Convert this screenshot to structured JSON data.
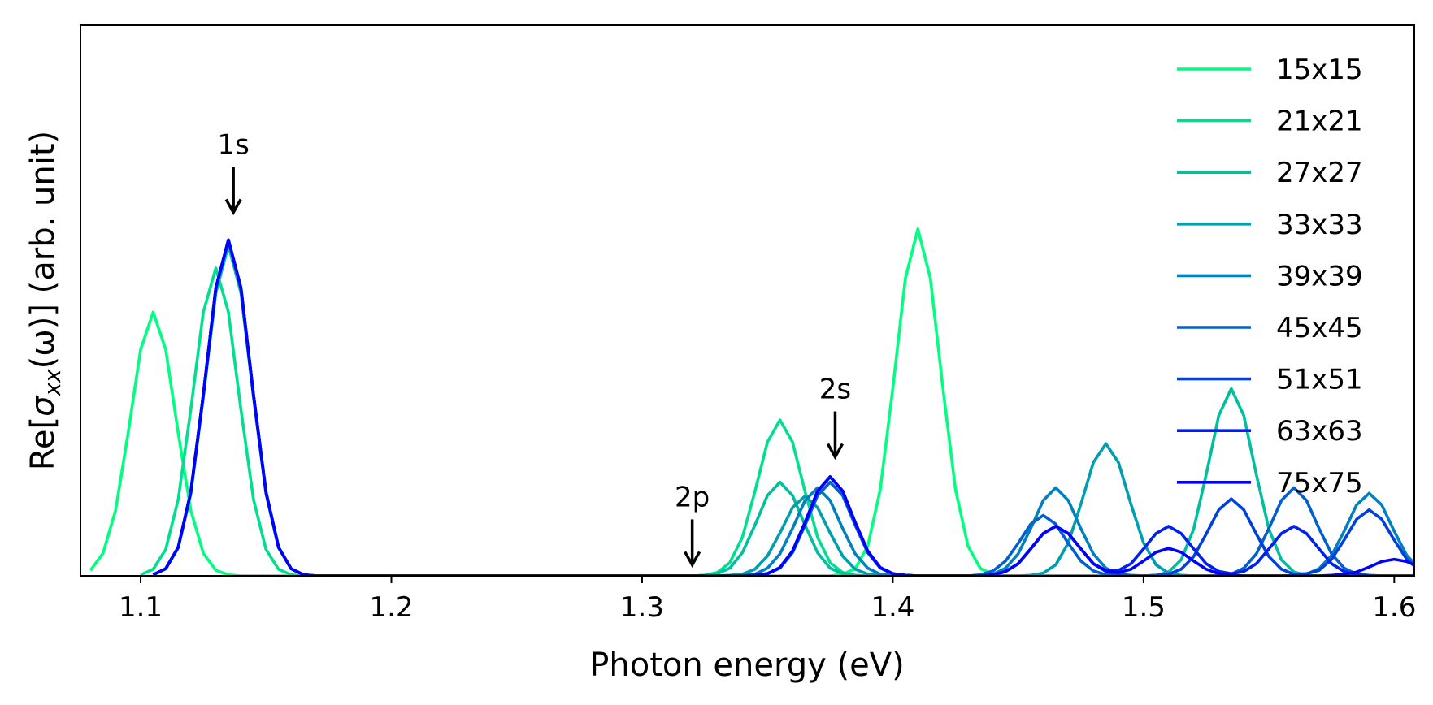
{
  "chart_data": {
    "type": "line",
    "xlabel": "Photon energy (eV)",
    "ylabel": [
      "Re[",
      "σ",
      "xx",
      "(ω)] (arb. unit)"
    ],
    "xlim": [
      1.076,
      1.608
    ],
    "ylim": [
      0,
      1
    ],
    "xticks": [
      1.1,
      1.2,
      1.3,
      1.4,
      1.5,
      1.6
    ],
    "legend": "upper right",
    "annotations": [
      {
        "text": "1s",
        "x": 1.137,
        "y": 0.66
      },
      {
        "text": "2p",
        "x": 1.32,
        "y": 0.02
      },
      {
        "text": "2s",
        "x": 1.377,
        "y": 0.216
      }
    ],
    "x": [
      1.08,
      1.085,
      1.09,
      1.095,
      1.1,
      1.105,
      1.11,
      1.115,
      1.12,
      1.125,
      1.13,
      1.135,
      1.14,
      1.145,
      1.15,
      1.155,
      1.16,
      1.165,
      1.17,
      1.175,
      1.18,
      1.185,
      1.19,
      1.195,
      1.2,
      1.205,
      1.21,
      1.215,
      1.22,
      1.225,
      1.23,
      1.235,
      1.24,
      1.245,
      1.25,
      1.255,
      1.26,
      1.265,
      1.27,
      1.275,
      1.28,
      1.285,
      1.29,
      1.295,
      1.3,
      1.305,
      1.31,
      1.315,
      1.32,
      1.325,
      1.33,
      1.335,
      1.34,
      1.345,
      1.35,
      1.355,
      1.36,
      1.365,
      1.37,
      1.375,
      1.38,
      1.385,
      1.39,
      1.395,
      1.4,
      1.405,
      1.41,
      1.415,
      1.42,
      1.425,
      1.43,
      1.435,
      1.44,
      1.445,
      1.45,
      1.455,
      1.46,
      1.465,
      1.47,
      1.475,
      1.48,
      1.485,
      1.49,
      1.495,
      1.5,
      1.505,
      1.51,
      1.515,
      1.52,
      1.525,
      1.53,
      1.535,
      1.54,
      1.545,
      1.55,
      1.555,
      1.56,
      1.565,
      1.57,
      1.575,
      1.58,
      1.585,
      1.59,
      1.595,
      1.6,
      1.605,
      1.61
    ],
    "series": [
      {
        "name": "15x15",
        "color": "#00ff80",
        "values": [
          0.01,
          0.041,
          0.119,
          0.259,
          0.411,
          0.479,
          0.411,
          0.259,
          0.119,
          0.041,
          0.01,
          0.002,
          0,
          0,
          0,
          0,
          0,
          0,
          0,
          0,
          0,
          0,
          0,
          0,
          0,
          0,
          0,
          0,
          0,
          0,
          0,
          0,
          0,
          0,
          0,
          0,
          0,
          0,
          0,
          0,
          0,
          0,
          0,
          0,
          0,
          0,
          0,
          0,
          0,
          0,
          0,
          0,
          0,
          0,
          0,
          0,
          0,
          0,
          0,
          0,
          0.003,
          0.013,
          0.054,
          0.157,
          0.34,
          0.54,
          0.63,
          0.54,
          0.34,
          0.157,
          0.054,
          0.013,
          0.003,
          0,
          0,
          0,
          0,
          0,
          0,
          0,
          0,
          0,
          0,
          0,
          0,
          0,
          0,
          0,
          0,
          0,
          0,
          0,
          0,
          0,
          0,
          0,
          0,
          0,
          0,
          0,
          0,
          0,
          0,
          0,
          0,
          0,
          0
        ]
      },
      {
        "name": "21x21",
        "color": "#00df90",
        "values": [
          null,
          null,
          null,
          null,
          0.002,
          0.012,
          0.048,
          0.139,
          0.302,
          0.479,
          0.559,
          0.479,
          0.302,
          0.139,
          0.048,
          0.012,
          0.002,
          0,
          0,
          0,
          0,
          0,
          0,
          0,
          0,
          0,
          0,
          0,
          0,
          0,
          0,
          0,
          0,
          0,
          0,
          0,
          0,
          0,
          0,
          0,
          0,
          0,
          0,
          0,
          0,
          0,
          0,
          0,
          0,
          0.001,
          0.006,
          0.024,
          0.07,
          0.153,
          0.243,
          0.283,
          0.243,
          0.153,
          0.07,
          0.024,
          0.006,
          0.001,
          0,
          0,
          0,
          0,
          0,
          0,
          0,
          0,
          0,
          0,
          0,
          0,
          0,
          0,
          0,
          0,
          0,
          0,
          0,
          0,
          0,
          0,
          0,
          0,
          0,
          0,
          0,
          0,
          0,
          0,
          0,
          0,
          0,
          0,
          0,
          0,
          0,
          0,
          0,
          0,
          0,
          0,
          0,
          0,
          0
        ]
      },
      {
        "name": "27x27",
        "color": "#00bf9f",
        "values": [
          null,
          null,
          null,
          null,
          null,
          0.002,
          0.013,
          0.051,
          0.149,
          0.324,
          0.514,
          0.6,
          0.514,
          0.324,
          0.149,
          0.051,
          0.013,
          0.002,
          0,
          0,
          0,
          0,
          0,
          0,
          0,
          0,
          0,
          0,
          0,
          0,
          0,
          0,
          0,
          0,
          0,
          0,
          0,
          0,
          0,
          0,
          0,
          0,
          0,
          0,
          0,
          0,
          0,
          0,
          0,
          0.001,
          0.004,
          0.014,
          0.042,
          0.092,
          0.146,
          0.17,
          0.146,
          0.092,
          0.042,
          0.014,
          0.004,
          0.001,
          0,
          0,
          0,
          0,
          0,
          0,
          0,
          0,
          0,
          0,
          0,
          0,
          0,
          0,
          0,
          0,
          0,
          0,
          0,
          0,
          0,
          0,
          0,
          0.001,
          0.007,
          0.029,
          0.085,
          0.184,
          0.291,
          0.34,
          0.291,
          0.184,
          0.085,
          0.029,
          0.007,
          0.001,
          0,
          0,
          0,
          0,
          0,
          0,
          0,
          0,
          0
        ]
      },
      {
        "name": "33x33",
        "color": "#009fb0",
        "values": [
          null,
          null,
          null,
          null,
          null,
          0.002,
          0.013,
          0.052,
          0.152,
          0.329,
          0.523,
          0.61,
          0.523,
          0.329,
          0.152,
          0.052,
          0.013,
          0.002,
          0,
          0,
          0,
          0,
          0,
          0,
          0,
          0,
          0,
          0,
          0,
          0,
          0,
          0,
          0,
          0,
          0,
          0,
          0,
          0,
          0,
          0,
          0,
          0,
          0,
          0,
          0,
          0,
          0,
          0,
          0,
          0,
          0,
          0.001,
          0.003,
          0.012,
          0.036,
          0.078,
          0.124,
          0.145,
          0.124,
          0.078,
          0.036,
          0.012,
          0.003,
          0.001,
          0,
          0,
          0,
          0,
          0,
          0,
          0,
          0,
          0,
          0,
          0,
          0.001,
          0.005,
          0.02,
          0.06,
          0.13,
          0.206,
          0.24,
          0.206,
          0.13,
          0.06,
          0.02,
          0.005,
          0.001,
          0,
          0,
          0,
          0,
          0,
          0,
          0,
          0,
          0,
          0,
          0,
          0,
          0,
          0,
          0,
          0,
          0,
          0,
          0
        ]
      },
      {
        "name": "39x39",
        "color": "#0080bf",
        "values": [
          null,
          null,
          null,
          null,
          null,
          0.002,
          0.013,
          0.052,
          0.152,
          0.329,
          0.523,
          0.61,
          0.523,
          0.329,
          0.152,
          0.052,
          0.013,
          0.002,
          0,
          0,
          0,
          0,
          0,
          0,
          0,
          0,
          0,
          0,
          0,
          0,
          0,
          0,
          0,
          0,
          0,
          0,
          0,
          0,
          0,
          0,
          0,
          0,
          0,
          0,
          0,
          0,
          0,
          0,
          0,
          0,
          0,
          0,
          0.001,
          0.003,
          0.014,
          0.04,
          0.086,
          0.137,
          0.16,
          0.137,
          0.086,
          0.04,
          0.014,
          0.003,
          0.001,
          0,
          0,
          0,
          0,
          0,
          0,
          0.001,
          0.003,
          0.014,
          0.04,
          0.086,
          0.137,
          0.16,
          0.137,
          0.086,
          0.04,
          0.014,
          0.003,
          0.001,
          0,
          0,
          0,
          0,
          0,
          0,
          0,
          0,
          0,
          0,
          0,
          0,
          0.001,
          0.003,
          0.013,
          0.037,
          0.081,
          0.129,
          0.15,
          0.129,
          0.081,
          0.037,
          0.013
        ]
      },
      {
        "name": "45x45",
        "color": "#0060cf",
        "values": [
          null,
          null,
          null,
          null,
          null,
          0.002,
          0.013,
          0.052,
          0.152,
          0.329,
          0.523,
          0.61,
          0.523,
          0.329,
          0.152,
          0.052,
          0.013,
          0.002,
          0,
          0,
          0,
          0,
          0,
          0,
          0,
          0,
          0,
          0,
          0,
          0,
          0,
          0,
          0,
          0,
          0,
          0,
          0,
          0,
          0,
          0,
          0,
          0,
          0,
          0,
          0,
          0,
          0,
          0,
          0,
          0,
          0,
          0,
          0,
          0.001,
          0.004,
          0.014,
          0.042,
          0.092,
          0.146,
          0.17,
          0.146,
          0.092,
          0.042,
          0.014,
          0.004,
          0.001,
          0,
          0,
          0,
          0,
          0,
          0.002,
          0.009,
          0.027,
          0.059,
          0.094,
          0.11,
          0.094,
          0.059,
          0.027,
          0.009,
          0.002,
          0,
          0,
          0,
          0,
          0,
          0,
          0,
          0,
          0.001,
          0.003,
          0.014,
          0.04,
          0.086,
          0.137,
          0.16,
          0.137,
          0.086,
          0.04,
          0.014,
          0.003,
          0.001,
          0,
          0,
          0,
          0
        ]
      },
      {
        "name": "51x51",
        "color": "#0040df",
        "values": [
          null,
          null,
          null,
          null,
          null,
          0.002,
          0.013,
          0.052,
          0.152,
          0.329,
          0.523,
          0.61,
          0.523,
          0.329,
          0.152,
          0.052,
          0.013,
          0.002,
          0,
          0,
          0,
          0,
          0,
          0,
          0,
          0,
          0,
          0,
          0,
          0,
          0,
          0,
          0,
          0,
          0,
          0,
          0,
          0,
          0,
          0,
          0,
          0,
          0,
          0,
          0,
          0,
          0,
          0,
          0,
          0,
          0,
          0,
          0,
          0.001,
          0.004,
          0.015,
          0.045,
          0.097,
          0.154,
          0.18,
          0.154,
          0.097,
          0.045,
          0.015,
          0.004,
          0.001,
          0,
          0,
          0,
          0,
          0,
          0,
          0.002,
          0.008,
          0.022,
          0.049,
          0.077,
          0.09,
          0.077,
          0.049,
          0.022,
          0.008,
          0.002,
          0,
          0,
          0.001,
          0.003,
          0.012,
          0.035,
          0.076,
          0.12,
          0.14,
          0.12,
          0.076,
          0.035,
          0.012,
          0.003,
          0.004,
          0.01,
          0.03,
          0.065,
          0.103,
          0.12,
          0.103,
          0.065,
          0.03,
          0.01
        ]
      },
      {
        "name": "63x63",
        "color": "#0020ef",
        "values": [
          null,
          null,
          null,
          null,
          null,
          0.002,
          0.013,
          0.052,
          0.152,
          0.329,
          0.523,
          0.61,
          0.523,
          0.329,
          0.152,
          0.052,
          0.013,
          0.002,
          0,
          0,
          0,
          0,
          0,
          0,
          0,
          0,
          0,
          0,
          0,
          0,
          0,
          0,
          0,
          0,
          0,
          0,
          0,
          0,
          0,
          0,
          0,
          0,
          0,
          0,
          0,
          0,
          0,
          0,
          0,
          0,
          0,
          0,
          0,
          0.001,
          0.004,
          0.015,
          0.045,
          0.097,
          0.154,
          0.18,
          0.154,
          0.097,
          0.045,
          0.015,
          0.004,
          0.001,
          0,
          0,
          0,
          0,
          0,
          0,
          0.002,
          0.008,
          0.022,
          0.049,
          0.077,
          0.09,
          0.077,
          0.049,
          0.022,
          0.01,
          0.01,
          0.022,
          0.049,
          0.077,
          0.09,
          0.077,
          0.049,
          0.022,
          0.008,
          0.004,
          0.008,
          0.022,
          0.049,
          0.077,
          0.09,
          0.077,
          0.049,
          0.022,
          0.008,
          0.002,
          0,
          0,
          0,
          0,
          0
        ]
      },
      {
        "name": "75x75",
        "color": "#0000ff",
        "values": [
          null,
          null,
          null,
          null,
          null,
          0.002,
          0.013,
          0.052,
          0.152,
          0.329,
          0.523,
          0.61,
          0.523,
          0.329,
          0.152,
          0.052,
          0.013,
          0.002,
          0,
          0,
          0,
          0,
          0,
          0,
          0,
          0,
          0,
          0,
          0,
          0,
          0,
          0,
          0,
          0,
          0,
          0,
          0,
          0,
          0,
          0,
          0,
          0,
          0,
          0,
          0,
          0,
          0,
          0,
          0,
          0,
          0,
          0,
          0,
          0.001,
          0.004,
          0.015,
          0.045,
          0.097,
          0.154,
          0.18,
          0.154,
          0.097,
          0.045,
          0.015,
          0.004,
          0.001,
          0,
          0,
          0,
          0,
          0,
          0,
          0.002,
          0.008,
          0.022,
          0.049,
          0.077,
          0.09,
          0.077,
          0.049,
          0.022,
          0.009,
          0.006,
          0.012,
          0.027,
          0.043,
          0.05,
          0.043,
          0.027,
          0.012,
          0.004,
          0.001,
          0,
          0,
          0,
          0,
          0,
          0,
          0,
          0.001,
          0.003,
          0.007,
          0.016,
          0.026,
          0.03,
          0.026,
          0.016
        ]
      }
    ]
  }
}
